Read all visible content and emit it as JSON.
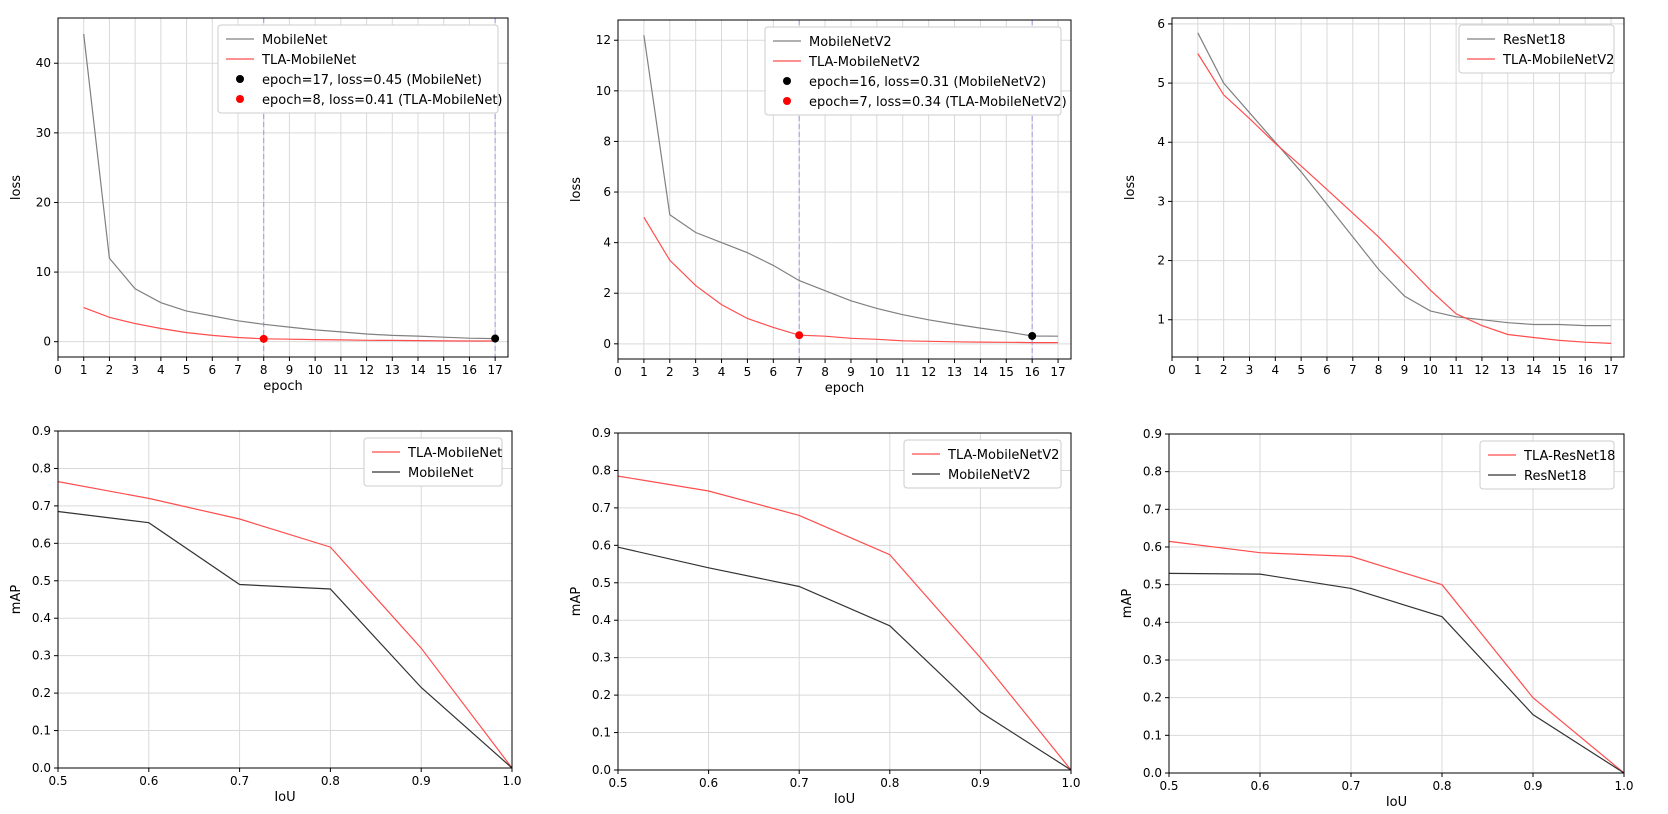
{
  "colors": {
    "gray": "#808080",
    "red": "#ff4d4d",
    "black": "#000000",
    "dark": "#333333",
    "vline": "#9999e6"
  },
  "chart_data": [
    {
      "type": "line",
      "panel": "top-left",
      "title": "",
      "xlabel": "epoch",
      "ylabel": "loss",
      "xlim": [
        0,
        17.5
      ],
      "ylim": [
        -2.2,
        46.5
      ],
      "xticks": [
        "0",
        "1",
        "2",
        "3",
        "4",
        "5",
        "6",
        "7",
        "8",
        "9",
        "10",
        "11",
        "12",
        "13",
        "14",
        "15",
        "16",
        "17"
      ],
      "yticks": [
        "0",
        "10",
        "20",
        "30",
        "40"
      ],
      "grid": true,
      "legend": "top-right",
      "series": [
        {
          "name": "MobileNet",
          "color": "#808080",
          "x": [
            1,
            2,
            3,
            4,
            5,
            6,
            7,
            8,
            9,
            10,
            11,
            12,
            13,
            14,
            15,
            16,
            17
          ],
          "y": [
            44.2,
            12.0,
            7.6,
            5.6,
            4.4,
            3.7,
            3.0,
            2.5,
            2.1,
            1.7,
            1.4,
            1.1,
            0.9,
            0.8,
            0.65,
            0.5,
            0.45
          ]
        },
        {
          "name": "TLA-MobileNet",
          "color": "#ff4d4d",
          "x": [
            1,
            2,
            3,
            4,
            5,
            6,
            7,
            8,
            9,
            10,
            11,
            12,
            13,
            14,
            15,
            16,
            17
          ],
          "y": [
            4.9,
            3.5,
            2.6,
            1.9,
            1.3,
            0.9,
            0.6,
            0.41,
            0.35,
            0.3,
            0.25,
            0.2,
            0.18,
            0.15,
            0.12,
            0.1,
            0.1
          ]
        }
      ],
      "markers": [
        {
          "label": "epoch=17, loss=0.45 (MobileNet)",
          "x": 17,
          "y": 0.45,
          "color": "#000000"
        },
        {
          "label": "epoch=8, loss=0.41 (TLA-MobileNet)",
          "x": 8,
          "y": 0.41,
          "color": "#ff0000"
        }
      ],
      "vlines": [
        8,
        17
      ]
    },
    {
      "type": "line",
      "panel": "top-center",
      "title": "",
      "xlabel": "epoch",
      "ylabel": "loss",
      "xlim": [
        0,
        17.5
      ],
      "ylim": [
        -0.6,
        12.8
      ],
      "xticks": [
        "0",
        "1",
        "2",
        "3",
        "4",
        "5",
        "6",
        "7",
        "8",
        "9",
        "10",
        "11",
        "12",
        "13",
        "14",
        "15",
        "16",
        "17"
      ],
      "yticks": [
        "0",
        "2",
        "4",
        "6",
        "8",
        "10",
        "12"
      ],
      "grid": true,
      "legend": "top-right",
      "series": [
        {
          "name": "MobileNetV2",
          "color": "#808080",
          "x": [
            1,
            2,
            3,
            4,
            5,
            6,
            7,
            8,
            9,
            10,
            11,
            12,
            13,
            14,
            15,
            16,
            17
          ],
          "y": [
            12.2,
            5.1,
            4.4,
            4.0,
            3.6,
            3.1,
            2.5,
            2.1,
            1.7,
            1.4,
            1.15,
            0.95,
            0.78,
            0.62,
            0.48,
            0.31,
            0.3
          ]
        },
        {
          "name": "TLA-MobileNetV2",
          "color": "#ff4d4d",
          "x": [
            1,
            2,
            3,
            4,
            5,
            6,
            7,
            8,
            9,
            10,
            11,
            12,
            13,
            14,
            15,
            16,
            17
          ],
          "y": [
            5.0,
            3.3,
            2.3,
            1.55,
            1.0,
            0.65,
            0.34,
            0.3,
            0.22,
            0.18,
            0.12,
            0.1,
            0.08,
            0.07,
            0.06,
            0.05,
            0.05
          ]
        }
      ],
      "markers": [
        {
          "label": "epoch=16, loss=0.31 (MobileNetV2)",
          "x": 16,
          "y": 0.31,
          "color": "#000000"
        },
        {
          "label": "epoch=7, loss=0.34 (TLA-MobileNetV2)",
          "x": 7,
          "y": 0.34,
          "color": "#ff0000"
        }
      ],
      "vlines": [
        7,
        16
      ]
    },
    {
      "type": "line",
      "panel": "top-right",
      "title": "",
      "xlabel": "",
      "ylabel": "loss",
      "xlim": [
        0,
        17.5
      ],
      "ylim": [
        0.37,
        6.1
      ],
      "xticks": [
        "0",
        "1",
        "2",
        "3",
        "4",
        "5",
        "6",
        "7",
        "8",
        "9",
        "10",
        "11",
        "12",
        "13",
        "14",
        "15",
        "16",
        "17"
      ],
      "yticks": [
        "1",
        "2",
        "3",
        "4",
        "5",
        "6"
      ],
      "grid": true,
      "legend": "top-right",
      "series": [
        {
          "name": "ResNet18",
          "color": "#808080",
          "x": [
            1,
            2,
            3,
            4,
            5,
            6,
            7,
            8,
            9,
            10,
            11,
            12,
            13,
            14,
            15,
            16,
            17
          ],
          "y": [
            5.85,
            5.0,
            4.5,
            4.0,
            3.5,
            2.95,
            2.4,
            1.85,
            1.4,
            1.15,
            1.05,
            1.0,
            0.95,
            0.92,
            0.92,
            0.9,
            0.9
          ]
        },
        {
          "name": "TLA-MobileNetV2",
          "color": "#ff4d4d",
          "x": [
            1,
            2,
            3,
            4,
            5,
            6,
            7,
            8,
            9,
            10,
            11,
            12,
            13,
            14,
            15,
            16,
            17
          ],
          "y": [
            5.5,
            4.8,
            4.4,
            3.98,
            3.6,
            3.2,
            2.8,
            2.4,
            1.95,
            1.5,
            1.1,
            0.9,
            0.75,
            0.7,
            0.65,
            0.62,
            0.6
          ]
        }
      ],
      "markers": [],
      "vlines": []
    },
    {
      "type": "line",
      "panel": "bottom-left",
      "title": "",
      "xlabel": "IoU",
      "ylabel": "mAP",
      "xlim": [
        0.5,
        1.0
      ],
      "ylim": [
        0.0,
        0.9
      ],
      "xticks": [
        "0.5",
        "0.6",
        "0.7",
        "0.8",
        "0.9",
        "1.0"
      ],
      "yticks": [
        "0.0",
        "0.1",
        "0.2",
        "0.3",
        "0.4",
        "0.5",
        "0.6",
        "0.7",
        "0.8",
        "0.9"
      ],
      "grid": true,
      "legend": "top-right",
      "series": [
        {
          "name": "TLA-MobileNet",
          "color": "#ff4d4d",
          "x": [
            0.5,
            0.6,
            0.7,
            0.8,
            0.9,
            1.0
          ],
          "y": [
            0.765,
            0.72,
            0.665,
            0.59,
            0.32,
            0.0
          ]
        },
        {
          "name": "MobileNet",
          "color": "#333333",
          "x": [
            0.5,
            0.6,
            0.7,
            0.8,
            0.9,
            1.0
          ],
          "y": [
            0.685,
            0.655,
            0.49,
            0.478,
            0.215,
            0.0
          ]
        }
      ],
      "markers": [],
      "vlines": []
    },
    {
      "type": "line",
      "panel": "bottom-center",
      "title": "",
      "xlabel": "IoU",
      "ylabel": "mAP",
      "xlim": [
        0.5,
        1.0
      ],
      "ylim": [
        0.0,
        0.9
      ],
      "xticks": [
        "0.5",
        "0.6",
        "0.7",
        "0.8",
        "0.9",
        "1.0"
      ],
      "yticks": [
        "0.0",
        "0.1",
        "0.2",
        "0.3",
        "0.4",
        "0.5",
        "0.6",
        "0.7",
        "0.8",
        "0.9"
      ],
      "grid": true,
      "legend": "top-right",
      "series": [
        {
          "name": "TLA-MobileNetV2",
          "color": "#ff4d4d",
          "x": [
            0.5,
            0.6,
            0.7,
            0.8,
            0.9,
            1.0
          ],
          "y": [
            0.785,
            0.745,
            0.68,
            0.575,
            0.3,
            0.0
          ]
        },
        {
          "name": "MobileNetV2",
          "color": "#333333",
          "x": [
            0.5,
            0.6,
            0.7,
            0.8,
            0.9,
            1.0
          ],
          "y": [
            0.595,
            0.54,
            0.49,
            0.385,
            0.155,
            0.0
          ]
        }
      ],
      "markers": [],
      "vlines": []
    },
    {
      "type": "line",
      "panel": "bottom-right",
      "title": "",
      "xlabel": "IoU",
      "ylabel": "mAP",
      "xlim": [
        0.5,
        1.0
      ],
      "ylim": [
        0.0,
        0.9
      ],
      "xticks": [
        "0.5",
        "0.6",
        "0.7",
        "0.8",
        "0.9",
        "1.0"
      ],
      "yticks": [
        "0.0",
        "0.1",
        "0.2",
        "0.3",
        "0.4",
        "0.5",
        "0.6",
        "0.7",
        "0.8",
        "0.9"
      ],
      "grid": true,
      "legend": "top-right",
      "series": [
        {
          "name": "TLA-ResNet18",
          "color": "#ff4d4d",
          "x": [
            0.5,
            0.6,
            0.7,
            0.8,
            0.9,
            1.0
          ],
          "y": [
            0.615,
            0.585,
            0.575,
            0.5,
            0.2,
            0.0
          ]
        },
        {
          "name": "ResNet18",
          "color": "#333333",
          "x": [
            0.5,
            0.6,
            0.7,
            0.8,
            0.9,
            1.0
          ],
          "y": [
            0.53,
            0.528,
            0.49,
            0.415,
            0.155,
            0.0
          ]
        }
      ],
      "markers": [],
      "vlines": []
    }
  ]
}
